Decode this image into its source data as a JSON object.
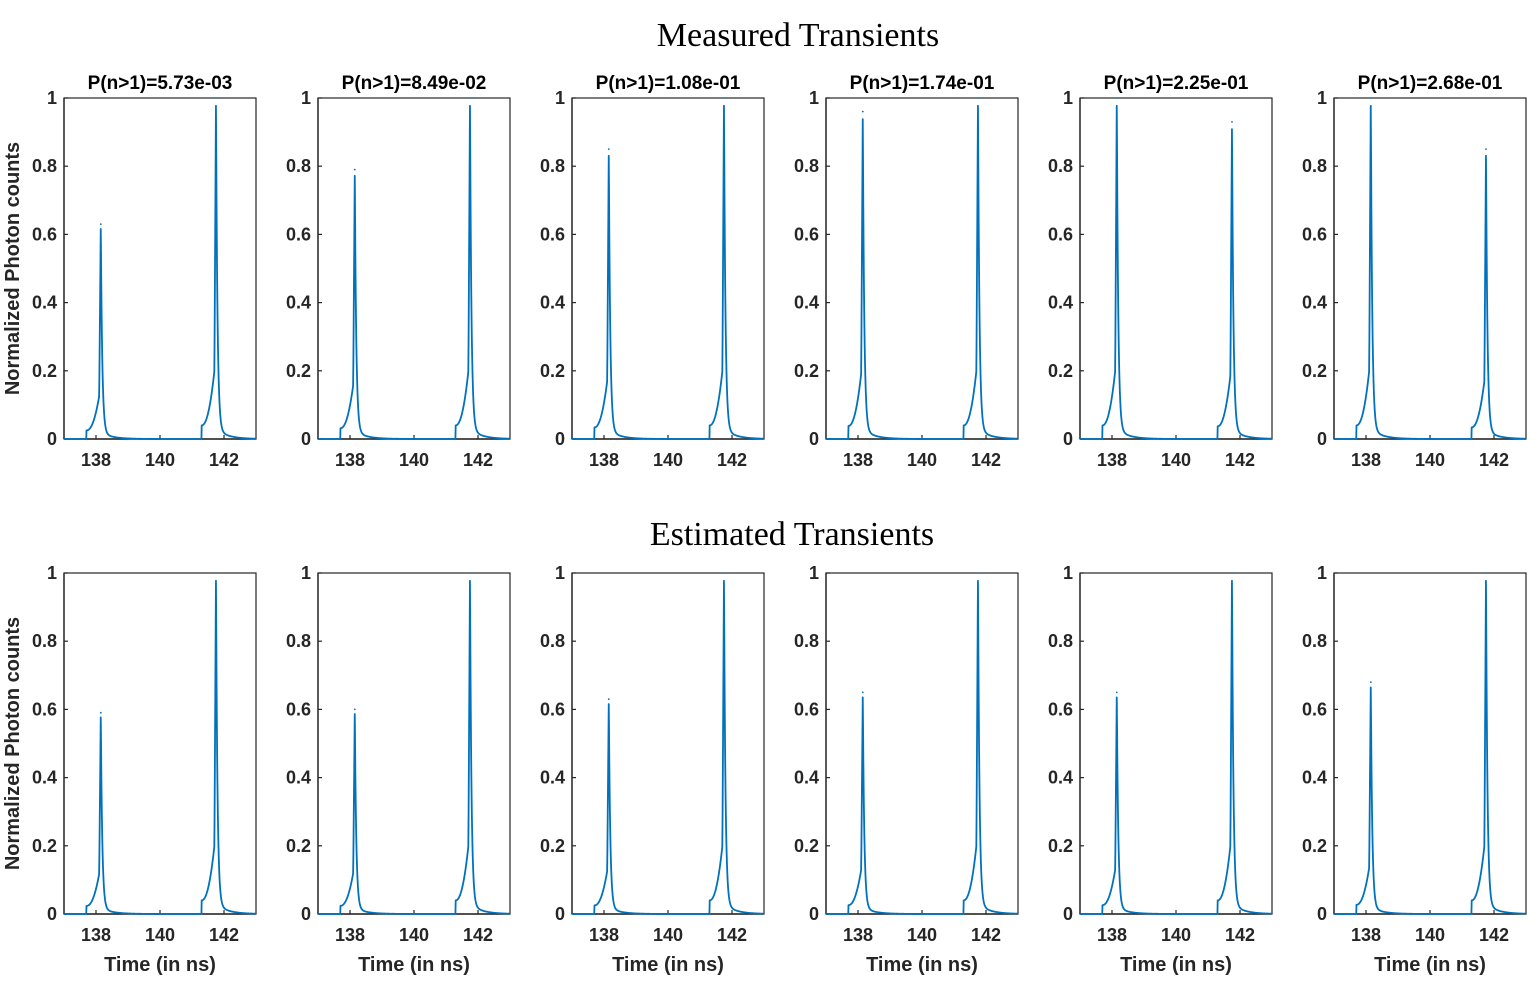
{
  "figure": {
    "top_title": "Measured Transients",
    "bottom_title": "Estimated Transients",
    "series_color": "#0072BD",
    "axis_color": "#262626"
  },
  "chart_data": [
    {
      "type": "line",
      "row": "measured",
      "title": "P(n>1)=5.73e-03",
      "xlabel": "",
      "ylabel": "Normalized Photon counts",
      "xlim": [
        137,
        143
      ],
      "ylim": [
        0,
        1
      ],
      "xticks": [
        138,
        140,
        142
      ],
      "yticks": [
        0,
        0.2,
        0.4,
        0.6,
        0.8,
        1
      ],
      "peak_times": [
        138.15,
        141.75
      ],
      "peak_values": [
        0.63,
        1.0
      ]
    },
    {
      "type": "line",
      "row": "measured",
      "title": "P(n>1)=8.49e-02",
      "xlabel": "",
      "ylabel": "",
      "xlim": [
        137,
        143
      ],
      "ylim": [
        0,
        1
      ],
      "xticks": [
        138,
        140,
        142
      ],
      "yticks": [
        0,
        0.2,
        0.4,
        0.6,
        0.8,
        1
      ],
      "peak_times": [
        138.15,
        141.75
      ],
      "peak_values": [
        0.79,
        1.0
      ]
    },
    {
      "type": "line",
      "row": "measured",
      "title": "P(n>1)=1.08e-01",
      "xlabel": "",
      "ylabel": "",
      "xlim": [
        137,
        143
      ],
      "ylim": [
        0,
        1
      ],
      "xticks": [
        138,
        140,
        142
      ],
      "yticks": [
        0,
        0.2,
        0.4,
        0.6,
        0.8,
        1
      ],
      "peak_times": [
        138.15,
        141.75
      ],
      "peak_values": [
        0.85,
        1.0
      ]
    },
    {
      "type": "line",
      "row": "measured",
      "title": "P(n>1)=1.74e-01",
      "xlabel": "",
      "ylabel": "",
      "xlim": [
        137,
        143
      ],
      "ylim": [
        0,
        1
      ],
      "xticks": [
        138,
        140,
        142
      ],
      "yticks": [
        0,
        0.2,
        0.4,
        0.6,
        0.8,
        1
      ],
      "peak_times": [
        138.15,
        141.75
      ],
      "peak_values": [
        0.96,
        1.0
      ]
    },
    {
      "type": "line",
      "row": "measured",
      "title": "P(n>1)=2.25e-01",
      "xlabel": "",
      "ylabel": "",
      "xlim": [
        137,
        143
      ],
      "ylim": [
        0,
        1
      ],
      "xticks": [
        138,
        140,
        142
      ],
      "yticks": [
        0,
        0.2,
        0.4,
        0.6,
        0.8,
        1
      ],
      "peak_times": [
        138.15,
        141.75
      ],
      "peak_values": [
        1.0,
        0.93
      ]
    },
    {
      "type": "line",
      "row": "measured",
      "title": "P(n>1)=2.68e-01",
      "xlabel": "",
      "ylabel": "",
      "xlim": [
        137,
        143
      ],
      "ylim": [
        0,
        1
      ],
      "xticks": [
        138,
        140,
        142
      ],
      "yticks": [
        0,
        0.2,
        0.4,
        0.6,
        0.8,
        1
      ],
      "peak_times": [
        138.15,
        141.75
      ],
      "peak_values": [
        1.0,
        0.85
      ]
    },
    {
      "type": "line",
      "row": "estimated",
      "title": "",
      "xlabel": "Time (in ns)",
      "ylabel": "Normalized Photon counts",
      "xlim": [
        137,
        143
      ],
      "ylim": [
        0,
        1
      ],
      "xticks": [
        138,
        140,
        142
      ],
      "yticks": [
        0,
        0.2,
        0.4,
        0.6,
        0.8,
        1
      ],
      "peak_times": [
        138.15,
        141.75
      ],
      "peak_values": [
        0.59,
        1.0
      ]
    },
    {
      "type": "line",
      "row": "estimated",
      "title": "",
      "xlabel": "Time (in ns)",
      "ylabel": "",
      "xlim": [
        137,
        143
      ],
      "ylim": [
        0,
        1
      ],
      "xticks": [
        138,
        140,
        142
      ],
      "yticks": [
        0,
        0.2,
        0.4,
        0.6,
        0.8,
        1
      ],
      "peak_times": [
        138.15,
        141.75
      ],
      "peak_values": [
        0.6,
        1.0
      ]
    },
    {
      "type": "line",
      "row": "estimated",
      "title": "",
      "xlabel": "Time (in ns)",
      "ylabel": "",
      "xlim": [
        137,
        143
      ],
      "ylim": [
        0,
        1
      ],
      "xticks": [
        138,
        140,
        142
      ],
      "yticks": [
        0,
        0.2,
        0.4,
        0.6,
        0.8,
        1
      ],
      "peak_times": [
        138.15,
        141.75
      ],
      "peak_values": [
        0.63,
        1.0
      ]
    },
    {
      "type": "line",
      "row": "estimated",
      "title": "",
      "xlabel": "Time (in ns)",
      "ylabel": "",
      "xlim": [
        137,
        143
      ],
      "ylim": [
        0,
        1
      ],
      "xticks": [
        138,
        140,
        142
      ],
      "yticks": [
        0,
        0.2,
        0.4,
        0.6,
        0.8,
        1
      ],
      "peak_times": [
        138.15,
        141.75
      ],
      "peak_values": [
        0.65,
        1.0
      ]
    },
    {
      "type": "line",
      "row": "estimated",
      "title": "",
      "xlabel": "Time (in ns)",
      "ylabel": "",
      "xlim": [
        137,
        143
      ],
      "ylim": [
        0,
        1
      ],
      "xticks": [
        138,
        140,
        142
      ],
      "yticks": [
        0,
        0.2,
        0.4,
        0.6,
        0.8,
        1
      ],
      "peak_times": [
        138.15,
        141.75
      ],
      "peak_values": [
        0.65,
        1.0
      ]
    },
    {
      "type": "line",
      "row": "estimated",
      "title": "",
      "xlabel": "Time (in ns)",
      "ylabel": "",
      "xlim": [
        137,
        143
      ],
      "ylim": [
        0,
        1
      ],
      "xticks": [
        138,
        140,
        142
      ],
      "yticks": [
        0,
        0.2,
        0.4,
        0.6,
        0.8,
        1
      ],
      "peak_times": [
        138.15,
        141.75
      ],
      "peak_values": [
        0.68,
        1.0
      ]
    }
  ]
}
